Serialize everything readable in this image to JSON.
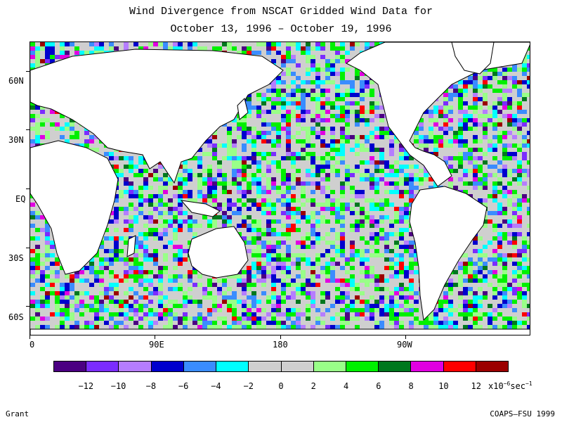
{
  "title": {
    "line1": "Wind Divergence from NSCAT Gridded Wind Data for",
    "line2": "October 13, 1996 – October 19, 1996"
  },
  "map": {
    "lat_labels": [
      "60N",
      "30N",
      "EQ",
      "30S",
      "60S"
    ],
    "lat_values": [
      60,
      30,
      0,
      -30,
      -60
    ],
    "lon_labels": [
      "0",
      "90E",
      "180",
      "90W"
    ],
    "lon_values": [
      0,
      90,
      180,
      270
    ],
    "lat_range": [
      -75,
      75
    ],
    "lon_range": [
      0,
      360
    ],
    "land_color": "#ffffff",
    "coastline_color": "#000000"
  },
  "colorbar": {
    "colors": [
      "#4b0082",
      "#7b2cff",
      "#b57dff",
      "#0000cd",
      "#3a8cff",
      "#00ffff",
      "#cfcfcf",
      "#cfcfcf",
      "#99ff88",
      "#00f000",
      "#00781e",
      "#e100e1",
      "#ff0000",
      "#9b0000"
    ],
    "labels": [
      "−12",
      "−10",
      "−8",
      "−6",
      "−4",
      "−2",
      "0",
      "2",
      "4",
      "6",
      "8",
      "10",
      "12"
    ],
    "unit_prefix": "x10",
    "unit_exp1": "−6",
    "unit_mid": "sec",
    "unit_exp2": "−1"
  },
  "footer": {
    "left": "Grant",
    "right": "COAPS–FSU 1999"
  }
}
